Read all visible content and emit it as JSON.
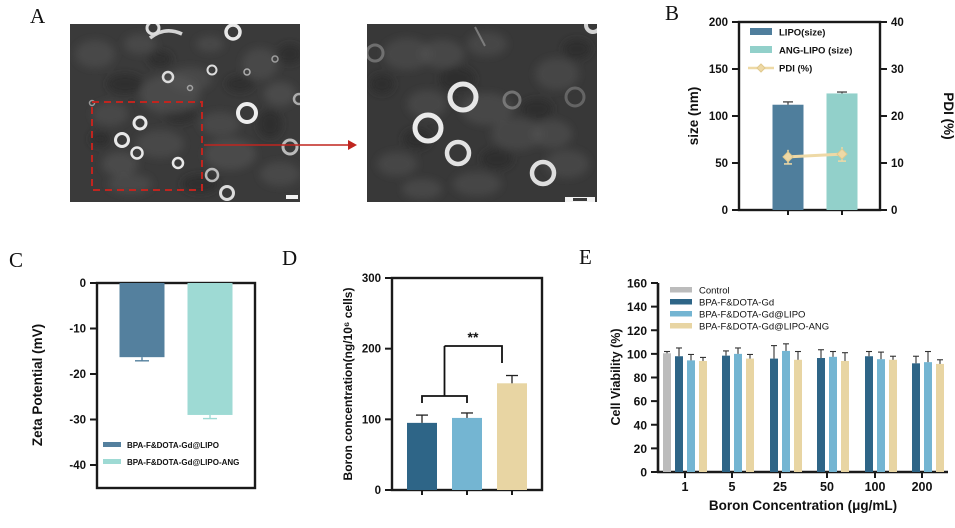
{
  "labels": {
    "a": "A",
    "b": "B",
    "c": "C",
    "d": "D",
    "e": "E"
  },
  "panel_a": {
    "description_left_image": "TEM micrograph of liposomes",
    "description_right_image": "Zoomed TEM region of liposomes",
    "roi_color": "#c0251f",
    "arrow_color": "#c0251f"
  },
  "colors": {
    "dark_teal": "#4f7e9c",
    "light_teal": "#92d0ca",
    "dark_blue": "#2e6587",
    "light_blue": "#74b5d2",
    "tan": "#e8d5a3",
    "pdi_line": "#eed9a6",
    "control_gray": "#bcbcbc",
    "axis": "#1a1a1a"
  },
  "chart_data": [
    {
      "id": "B",
      "type": "bar",
      "ylabel_left": "size (nm)",
      "ylabel_right": "PDI (%)",
      "ylim_left": [
        0,
        200
      ],
      "yticks_left": [
        0,
        50,
        100,
        150,
        200
      ],
      "ylim_right": [
        0,
        40
      ],
      "yticks_right": [
        0,
        10,
        20,
        30,
        40
      ],
      "legend": [
        "LIPO(size)",
        "ANG-LIPO (size)",
        "PDI (%)"
      ],
      "bars": [
        {
          "name": "LIPO(size)",
          "value": 112,
          "error": 3,
          "color": "#4f7e9c"
        },
        {
          "name": "ANG-LIPO (size)",
          "value": 124,
          "error": 1.5,
          "color": "#92d0ca"
        }
      ],
      "line": {
        "name": "PDI (%)",
        "values": [
          11.3,
          11.9
        ],
        "error": 1.5,
        "color": "#eed9a6"
      }
    },
    {
      "id": "C",
      "type": "bar",
      "ylabel": "Zeta Potential (mV)",
      "ylim": [
        -45,
        0
      ],
      "yticks": [
        0,
        -10,
        -20,
        -30,
        -40
      ],
      "bars": [
        {
          "name": "BPA-F&DOTA-Gd@LIPO",
          "value": -16.3,
          "error": 0.8,
          "color": "#54809e"
        },
        {
          "name": "BPA-F&DOTA-Gd@LIPO-ANG",
          "value": -29,
          "error": 0.8,
          "color": "#9edad4"
        }
      ]
    },
    {
      "id": "D",
      "type": "bar",
      "ylabel": "Boron concentration(ng/10⁶ cells)",
      "ylim": [
        0,
        300
      ],
      "yticks": [
        0,
        100,
        200,
        300
      ],
      "significance": "**",
      "bars": [
        {
          "name": "BPA-F&DOTA-Gd",
          "value": 95,
          "error": 11,
          "color": "#2e6587"
        },
        {
          "name": "BPA-F&DOTA-Gd@LIPO",
          "value": 102,
          "error": 7,
          "color": "#74b5d2"
        },
        {
          "name": "BPA-F&DOTA-Gd@LIPO-ANG",
          "value": 151,
          "error": 11,
          "color": "#e8d5a3"
        }
      ]
    },
    {
      "id": "E",
      "type": "grouped-bar",
      "xlabel": "Boron Concentration (μg/mL)",
      "ylabel": "Cell Viability (%)",
      "ylim": [
        0,
        160
      ],
      "yticks": [
        0,
        20,
        40,
        60,
        80,
        100,
        120,
        140,
        160
      ],
      "categories": [
        "1",
        "5",
        "25",
        "50",
        "100",
        "200"
      ],
      "series": [
        {
          "name": "Control",
          "color": "#bcbcbc",
          "values": [
            100.5
          ],
          "errors": [
            1.5
          ]
        },
        {
          "name": "BPA-F&DOTA-Gd",
          "color": "#2e6587",
          "values": [
            98,
            98.5,
            96,
            96.5,
            98,
            92
          ],
          "errors": [
            7,
            4,
            11,
            7,
            4,
            6
          ]
        },
        {
          "name": "BPA-F&DOTA-Gd@LIPO",
          "color": "#74b5d2",
          "values": [
            94.5,
            100,
            102.5,
            97.5,
            95.5,
            93
          ],
          "errors": [
            5,
            5,
            6,
            4.5,
            6,
            9
          ]
        },
        {
          "name": "BPA-F&DOTA-Gd@LIPO-ANG",
          "color": "#e8d5a3",
          "values": [
            94,
            96,
            95,
            94,
            95,
            91.5
          ],
          "errors": [
            3,
            3.5,
            7,
            7,
            3,
            3.5
          ]
        }
      ]
    }
  ]
}
